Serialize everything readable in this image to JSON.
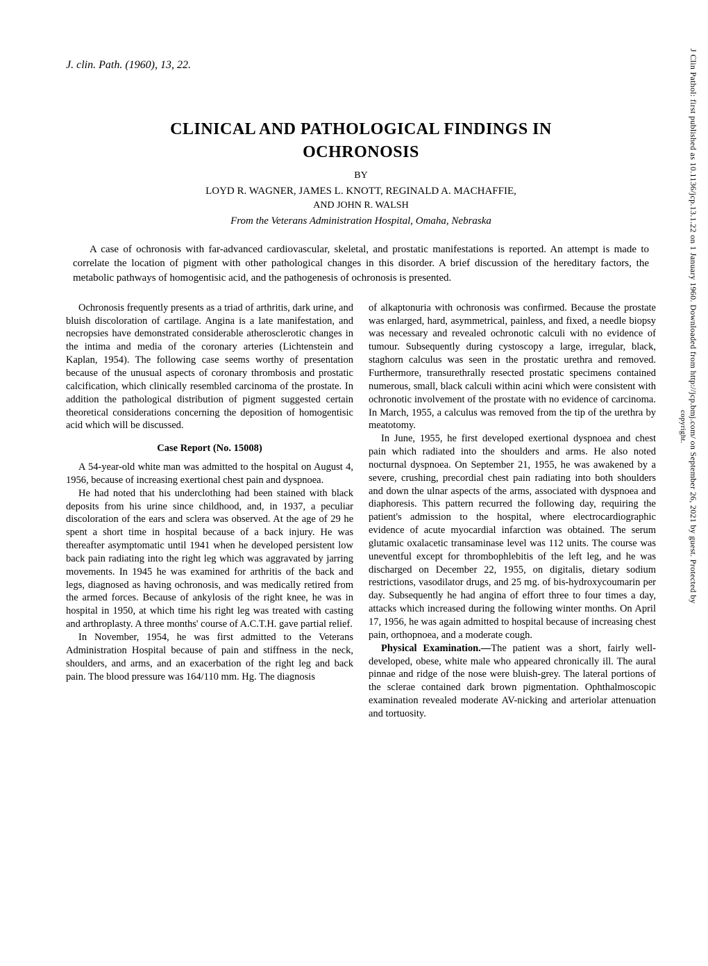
{
  "citation": "J. clin. Path. (1960), 13, 22.",
  "title_line1": "CLINICAL AND PATHOLOGICAL FINDINGS IN",
  "title_line2": "OCHRONOSIS",
  "by": "BY",
  "authors_line1": "LOYD R. WAGNER, JAMES L. KNOTT, REGINALD A. MACHAFFIE,",
  "authors_line2": "AND JOHN R. WALSH",
  "affiliation": "From the Veterans Administration Hospital, Omaha, Nebraska",
  "abstract": "A case of ochronosis with far-advanced cardiovascular, skeletal, and prostatic manifestations is reported. An attempt is made to correlate the location of pigment with other pathological changes in this disorder. A brief discussion of the hereditary factors, the metabolic pathways of homogentisic acid, and the pathogenesis of ochronosis is presented.",
  "left_intro": "Ochronosis frequently presents as a triad of arthritis, dark urine, and bluish discoloration of cartilage. Angina is a late manifestation, and necropsies have demonstrated considerable atherosclerotic changes in the intima and media of the coronary arteries (Lichtenstein and Kaplan, 1954). The following case seems worthy of presentation because of the unusual aspects of coronary thrombosis and prostatic calcification, which clinically resembled carcinoma of the prostate. In addition the pathological distribution of pigment suggested certain theoretical considerations concerning the deposition of homogentisic acid which will be discussed.",
  "case_report_head": "Case Report (No. 15008)",
  "case_p1": "A 54-year-old white man was admitted to the hospital on August 4, 1956, because of increasing exertional chest pain and dyspnoea.",
  "case_p2": "He had noted that his underclothing had been stained with black deposits from his urine since childhood, and, in 1937, a peculiar discoloration of the ears and sclera was observed. At the age of 29 he spent a short time in hospital because of a back injury. He was thereafter asymptomatic until 1941 when he developed persistent low back pain radiating into the right leg which was aggravated by jarring movements. In 1945 he was examined for arthritis of the back and legs, diagnosed as having ochronosis, and was medically retired from the armed forces. Because of ankylosis of the right knee, he was in hospital in 1950, at which time his right leg was treated with casting and arthroplasty. A three months' course of A.C.T.H. gave partial relief.",
  "case_p3": "In November, 1954, he was first admitted to the Veterans Administration Hospital because of pain and stiffness in the neck, shoulders, and arms, and an exacerbation of the right leg and back pain. The blood pressure was 164/110 mm. Hg. The diagnosis",
  "right_p1": "of alkaptonuria with ochronosis was confirmed. Because the prostate was enlarged, hard, asymmetrical, painless, and fixed, a needle biopsy was necessary and revealed ochronotic calculi with no evidence of tumour. Subsequently during cystoscopy a large, irregular, black, staghorn calculus was seen in the prostatic urethra and removed. Furthermore, transurethrally resected prostatic specimens contained numerous, small, black calculi within acini which were consistent with ochronotic involvement of the prostate with no evidence of carcinoma. In March, 1955, a calculus was removed from the tip of the urethra by meatotomy.",
  "right_p2": "In June, 1955, he first developed exertional dyspnoea and chest pain which radiated into the shoulders and arms. He also noted nocturnal dyspnoea. On September 21, 1955, he was awakened by a severe, crushing, precordial chest pain radiating into both shoulders and down the ulnar aspects of the arms, associated with dyspnoea and diaphoresis. This pattern recurred the following day, requiring the patient's admission to the hospital, where electrocardiographic evidence of acute myocardial infarction was obtained. The serum glutamic oxalacetic transaminase level was 112 units. The course was uneventful except for thrombophlebitis of the left leg, and he was discharged on December 22, 1955, on digitalis, dietary sodium restrictions, vasodilator drugs, and 25 mg. of bis-hydroxycoumarin per day. Subsequently he had angina of effort three to four times a day, attacks which increased during the following winter months. On April 17, 1956, he was again admitted to hospital because of increasing chest pain, orthopnoea, and a moderate cough.",
  "phys_exam_label": "Physical Examination.—",
  "phys_exam_text": "The patient was a short, fairly well-developed, obese, white male who appeared chronically ill. The aural pinnae and ridge of the nose were bluish-grey. The lateral portions of the sclerae contained dark brown pigmentation. Ophthalmoscopic examination revealed moderate AV-nicking and arteriolar attenuation and tortuosity.",
  "sidebar_text": "J Clin Pathol: first published as 10.1136/jcp.13.1.22 on 1 January 1960. Downloaded from http://jcp.bmj.com/ on September 26, 2021 by guest. Protected by",
  "sidebar_copyright": "copyright."
}
